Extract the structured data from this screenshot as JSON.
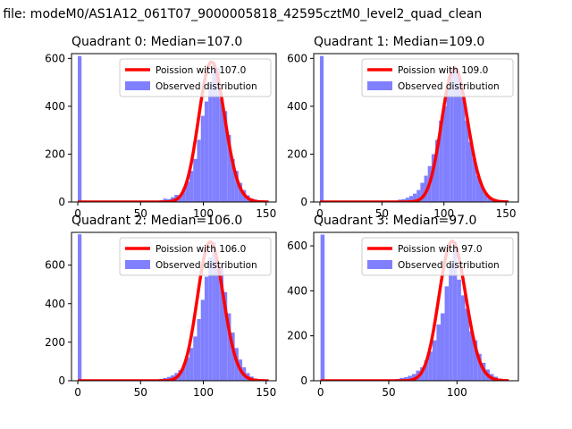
{
  "suptitle": "n file: modeM0/AS1A12_061T07_9000005818_42595cztM0_level2_quad_clean",
  "colors": {
    "hist": "#8080ff",
    "poisson": "#ff0000"
  },
  "chart_data": [
    {
      "type": "bar",
      "title": "Quadrant 0: Median=107.0",
      "median": 107,
      "legend": [
        "Poission with 107.0",
        "Observed distribution"
      ],
      "legend_position": "top-right",
      "xlim": [
        -5,
        158
      ],
      "ylim": [
        0,
        620
      ],
      "xticks": [
        0,
        50,
        100,
        150
      ],
      "yticks": [
        0,
        200,
        400,
        600
      ],
      "bins": [
        [
          0,
          3,
          610
        ],
        [
          65,
          68,
          8
        ],
        [
          68,
          71,
          14
        ],
        [
          71,
          74,
          12
        ],
        [
          74,
          77,
          20
        ],
        [
          77,
          80,
          30
        ],
        [
          80,
          83,
          28
        ],
        [
          83,
          86,
          55
        ],
        [
          86,
          89,
          85
        ],
        [
          89,
          92,
          130
        ],
        [
          92,
          95,
          180
        ],
        [
          95,
          98,
          260
        ],
        [
          98,
          101,
          360
        ],
        [
          101,
          104,
          420
        ],
        [
          104,
          107,
          500
        ],
        [
          107,
          110,
          585
        ],
        [
          110,
          113,
          560
        ],
        [
          113,
          116,
          430
        ],
        [
          116,
          119,
          380
        ],
        [
          119,
          122,
          280
        ],
        [
          122,
          125,
          180
        ],
        [
          125,
          128,
          130
        ],
        [
          128,
          131,
          80
        ],
        [
          131,
          134,
          50
        ],
        [
          134,
          137,
          28
        ],
        [
          137,
          140,
          15
        ],
        [
          140,
          143,
          10
        ],
        [
          143,
          146,
          5
        ],
        [
          146,
          149,
          3
        ]
      ]
    },
    {
      "type": "bar",
      "title": "Quadrant 1: Median=109.0",
      "median": 109,
      "legend": [
        "Poission with 109.0",
        "Observed distribution"
      ],
      "legend_position": "top-right",
      "xlim": [
        -5,
        160
      ],
      "ylim": [
        0,
        620
      ],
      "xticks": [
        0,
        50,
        100,
        150
      ],
      "yticks": [
        0,
        200,
        400,
        600
      ],
      "bins": [
        [
          0,
          3,
          610
        ],
        [
          60,
          63,
          6
        ],
        [
          63,
          66,
          10
        ],
        [
          66,
          69,
          12
        ],
        [
          69,
          72,
          18
        ],
        [
          72,
          75,
          25
        ],
        [
          75,
          78,
          35
        ],
        [
          78,
          81,
          50
        ],
        [
          81,
          84,
          80
        ],
        [
          84,
          87,
          110
        ],
        [
          87,
          90,
          150
        ],
        [
          90,
          93,
          200
        ],
        [
          93,
          96,
          260
        ],
        [
          96,
          99,
          340
        ],
        [
          99,
          102,
          400
        ],
        [
          102,
          105,
          470
        ],
        [
          105,
          108,
          560
        ],
        [
          108,
          111,
          560
        ],
        [
          111,
          114,
          520
        ],
        [
          114,
          117,
          440
        ],
        [
          117,
          120,
          340
        ],
        [
          120,
          123,
          250
        ],
        [
          123,
          126,
          180
        ],
        [
          126,
          129,
          110
        ],
        [
          129,
          132,
          70
        ],
        [
          132,
          135,
          40
        ],
        [
          135,
          138,
          20
        ],
        [
          138,
          141,
          10
        ],
        [
          141,
          144,
          6
        ]
      ]
    },
    {
      "type": "bar",
      "title": "Quadrant 2: Median=106.0",
      "median": 106,
      "legend": [
        "Poission with 106.0",
        "Observed distribution"
      ],
      "legend_position": "top-right",
      "xlim": [
        -5,
        158
      ],
      "ylim": [
        0,
        770
      ],
      "xticks": [
        0,
        50,
        100,
        150
      ],
      "yticks": [
        0,
        200,
        400,
        600
      ],
      "bins": [
        [
          0,
          3,
          760
        ],
        [
          62,
          65,
          6
        ],
        [
          65,
          68,
          10
        ],
        [
          68,
          71,
          14
        ],
        [
          71,
          74,
          20
        ],
        [
          74,
          77,
          28
        ],
        [
          77,
          80,
          40
        ],
        [
          80,
          83,
          55
        ],
        [
          83,
          86,
          80
        ],
        [
          86,
          89,
          120
        ],
        [
          89,
          92,
          170
        ],
        [
          92,
          95,
          230
        ],
        [
          95,
          98,
          320
        ],
        [
          98,
          101,
          420
        ],
        [
          101,
          104,
          540
        ],
        [
          104,
          107,
          640
        ],
        [
          107,
          110,
          720
        ],
        [
          110,
          113,
          580
        ],
        [
          113,
          116,
          600
        ],
        [
          116,
          119,
          460
        ],
        [
          119,
          122,
          350
        ],
        [
          122,
          125,
          250
        ],
        [
          125,
          128,
          170
        ],
        [
          128,
          131,
          110
        ],
        [
          131,
          134,
          70
        ],
        [
          134,
          137,
          40
        ],
        [
          137,
          140,
          22
        ],
        [
          140,
          143,
          12
        ],
        [
          143,
          146,
          6
        ]
      ]
    },
    {
      "type": "bar",
      "title": "Quadrant 3: Median=97.0",
      "median": 97,
      "legend": [
        "Poission with 97.0",
        "Observed distribution"
      ],
      "legend_position": "top-right",
      "xlim": [
        -5,
        145
      ],
      "ylim": [
        0,
        660
      ],
      "xticks": [
        0,
        50,
        100
      ],
      "yticks": [
        0,
        200,
        400,
        600
      ],
      "bins": [
        [
          0,
          3,
          650
        ],
        [
          55,
          58,
          8
        ],
        [
          58,
          61,
          12
        ],
        [
          61,
          64,
          16
        ],
        [
          64,
          67,
          22
        ],
        [
          67,
          70,
          30
        ],
        [
          70,
          73,
          45
        ],
        [
          73,
          76,
          60
        ],
        [
          76,
          79,
          90
        ],
        [
          79,
          82,
          130
        ],
        [
          82,
          85,
          180
        ],
        [
          85,
          88,
          250
        ],
        [
          88,
          91,
          300
        ],
        [
          91,
          94,
          420
        ],
        [
          94,
          97,
          520
        ],
        [
          97,
          100,
          620
        ],
        [
          100,
          103,
          450
        ],
        [
          103,
          106,
          380
        ],
        [
          106,
          109,
          320
        ],
        [
          109,
          112,
          220
        ],
        [
          112,
          115,
          180
        ],
        [
          115,
          118,
          120
        ],
        [
          118,
          121,
          80
        ],
        [
          121,
          124,
          50
        ],
        [
          124,
          127,
          30
        ],
        [
          127,
          130,
          18
        ],
        [
          130,
          133,
          10
        ],
        [
          133,
          136,
          5
        ]
      ]
    }
  ]
}
